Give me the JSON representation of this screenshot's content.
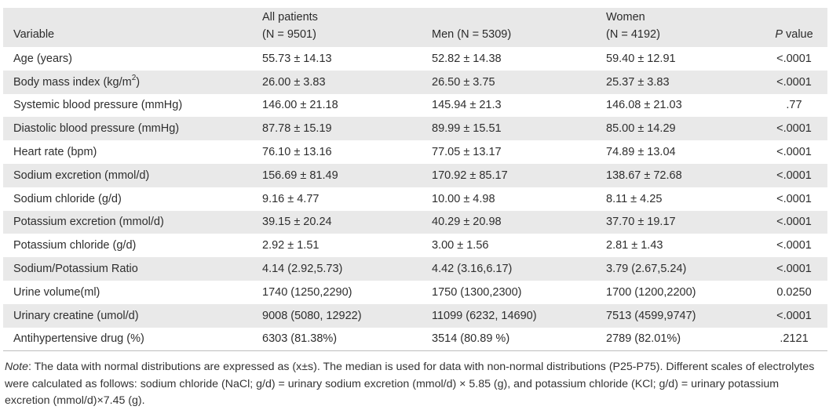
{
  "table": {
    "headers": {
      "variable": "Variable",
      "all_line1": "All patients",
      "all_line2": "(N = 9501)",
      "men": "Men (N = 5309)",
      "women_line1": "Women",
      "women_line2": "(N = 4192)",
      "p_italic": "P",
      "p_rest": " value"
    },
    "bmi_label_pre": "Body mass index (kg/m",
    "bmi_label_sup": "2",
    "bmi_label_post": ")",
    "rows": [
      {
        "variable": "Age (years)",
        "all": "55.73 ± 14.13",
        "men": "52.82 ± 14.38",
        "women": "59.40 ± 12.91",
        "p": "<.0001"
      },
      {
        "variable": "",
        "all": "26.00 ± 3.83",
        "men": "26.50 ± 3.75",
        "women": "25.37 ± 3.83",
        "p": "<.0001"
      },
      {
        "variable": "Systemic blood pressure (mmHg)",
        "all": "146.00 ± 21.18",
        "men": "145.94 ± 21.3",
        "women": "146.08 ± 21.03",
        "p": ".77"
      },
      {
        "variable": "Diastolic blood pressure (mmHg)",
        "all": "87.78 ± 15.19",
        "men": "89.99 ± 15.51",
        "women": "85.00 ± 14.29",
        "p": "<.0001"
      },
      {
        "variable": "Heart rate (bpm)",
        "all": "76.10 ± 13.16",
        "men": "77.05 ± 13.17",
        "women": "74.89 ± 13.04",
        "p": "<.0001"
      },
      {
        "variable": "Sodium excretion (mmol/d)",
        "all": "156.69 ± 81.49",
        "men": "170.92 ± 85.17",
        "women": "138.67 ± 72.68",
        "p": "<.0001"
      },
      {
        "variable": "Sodium chloride (g/d)",
        "all": "9.16 ± 4.77",
        "men": "10.00 ± 4.98",
        "women": "8.11 ± 4.25",
        "p": "<.0001"
      },
      {
        "variable": "Potassium excretion (mmol/d)",
        "all": "39.15 ± 20.24",
        "men": "40.29 ± 20.98",
        "women": "37.70 ± 19.17",
        "p": "<.0001"
      },
      {
        "variable": "Potassium chloride (g/d)",
        "all": "2.92 ± 1.51",
        "men": "3.00 ± 1.56",
        "women": "2.81 ± 1.43",
        "p": "<.0001"
      },
      {
        "variable": "Sodium/Potassium Ratio",
        "all": "4.14 (2.92,5.73)",
        "men": "4.42 (3.16,6.17)",
        "women": "3.79 (2.67,5.24)",
        "p": "<.0001"
      },
      {
        "variable": "Urine volume(ml)",
        "all": "1740 (1250,2290)",
        "men": "1750 (1300,2300)",
        "women": "1700 (1200,2200)",
        "p": "0.0250"
      },
      {
        "variable": "Urinary creatine (umol/d)",
        "all": "9008 (5080, 12922)",
        "men": "11099 (6232, 14690)",
        "women": "7513 (4599,9747)",
        "p": "<.0001"
      },
      {
        "variable": "Antihypertensive drug (%)",
        "all": "6303 (81.38%)",
        "men": "3514 (80.89 %)",
        "women": "2789 (82.01%)",
        "p": ".2121"
      }
    ]
  },
  "note": {
    "label": "Note",
    "text": ": The data with normal distributions are expressed as (x±s). The median is used for data with non-normal distributions (P25-P75). Different scales of electrolytes were calculated as follows: sodium chloride (NaCl; g/d) = urinary sodium excretion (mmol/d) × 5.85 (g), and potassium chloride (KCl; g/d) = urinary potassium excretion (mmol/d)×7.45 (g)."
  }
}
